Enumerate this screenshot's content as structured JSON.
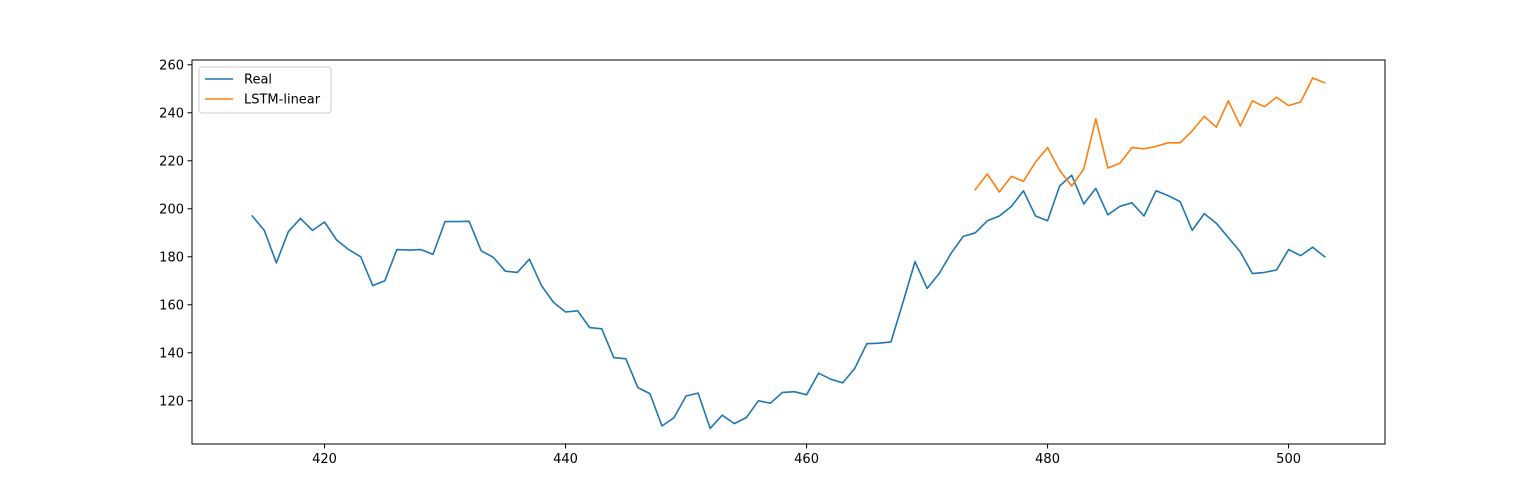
{
  "chart_data": {
    "type": "line",
    "title": "",
    "xlabel": "",
    "ylabel": "",
    "xlim": [
      409,
      508
    ],
    "ylim": [
      102,
      262
    ],
    "x_ticks": [
      420,
      440,
      460,
      480,
      500
    ],
    "y_ticks": [
      120,
      140,
      160,
      180,
      200,
      220,
      240,
      260
    ],
    "grid": false,
    "legend_position": "upper-left",
    "series": [
      {
        "name": "Real",
        "color": "#1f77b4",
        "x": [
          414,
          415,
          416,
          417,
          418,
          419,
          420,
          421,
          422,
          423,
          424,
          425,
          426,
          427,
          428,
          429,
          430,
          431,
          432,
          433,
          434,
          435,
          436,
          437,
          438,
          439,
          440,
          441,
          442,
          443,
          444,
          445,
          446,
          447,
          448,
          449,
          450,
          451,
          452,
          453,
          454,
          455,
          456,
          457,
          458,
          459,
          460,
          461,
          462,
          463,
          464,
          465,
          466,
          467,
          468,
          469,
          470,
          471,
          472,
          473,
          474,
          475,
          476,
          477,
          478,
          479,
          480,
          481,
          482,
          483,
          484,
          485,
          486,
          487,
          488,
          489,
          490,
          491,
          492,
          493,
          494,
          495,
          496,
          497,
          498,
          499,
          500,
          501,
          502,
          503
        ],
        "y": [
          197,
          191,
          177.5,
          190.5,
          196,
          191,
          194.5,
          187,
          183,
          180,
          168,
          170,
          183,
          182.8,
          183,
          181,
          194.7,
          194.7,
          194.8,
          182.5,
          179.8,
          174,
          173.5,
          179,
          168,
          161,
          157,
          157.5,
          150.5,
          150,
          138,
          137.5,
          125.5,
          123,
          109.5,
          113,
          122,
          123.2,
          108.5,
          114,
          110.5,
          113,
          120,
          119,
          123.5,
          123.8,
          122.5,
          131.5,
          129,
          127.5,
          133.5,
          143.8,
          144,
          144.5,
          161,
          178,
          166.8,
          173,
          181.5,
          188.5,
          190,
          195,
          197,
          201,
          207.5,
          197,
          195,
          209.5,
          214,
          202,
          208.5,
          197.5,
          201,
          202.5,
          197,
          207.5,
          205.5,
          203,
          191,
          198,
          194,
          188,
          182,
          173,
          173.5,
          174.5,
          183,
          180.5,
          184,
          180
        ]
      },
      {
        "name": "LSTM-linear",
        "color": "#ff7f0e",
        "x": [
          474,
          475,
          476,
          477,
          478,
          479,
          480,
          481,
          482,
          483,
          484,
          485,
          486,
          487,
          488,
          489,
          490,
          491,
          492,
          493,
          494,
          495,
          496,
          497,
          498,
          499,
          500,
          501,
          502,
          503
        ],
        "y": [
          208,
          214.5,
          207,
          213.5,
          211.5,
          219.5,
          225.5,
          216,
          209.5,
          216.5,
          237.5,
          217,
          219,
          225.5,
          225,
          226,
          227.5,
          227.5,
          232.5,
          238.5,
          234,
          245,
          234.5,
          245,
          242.5,
          246.5,
          243,
          244.5,
          254.5,
          252.5
        ]
      }
    ]
  }
}
